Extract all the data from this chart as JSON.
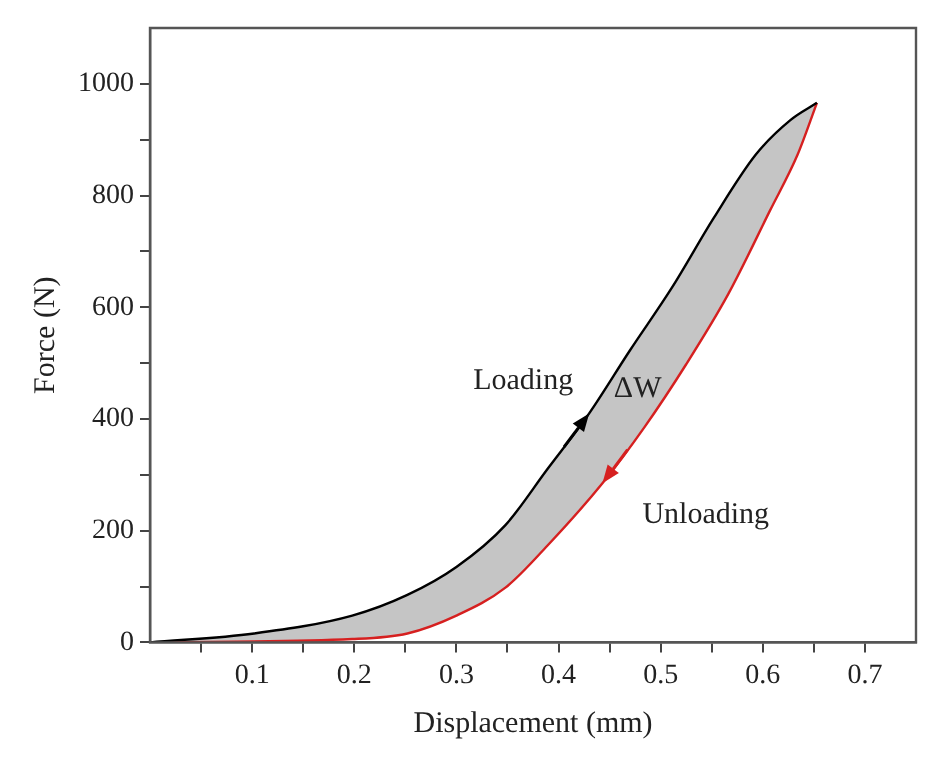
{
  "chart_data": {
    "type": "line",
    "xlabel": "Displacement (mm)",
    "ylabel": "Force (N)",
    "xlim": [
      0,
      0.75
    ],
    "ylim": [
      0,
      1100
    ],
    "xticks": [
      {
        "value": 0.05,
        "label": null
      },
      0.1,
      {
        "value": 0.15,
        "label": null
      },
      0.2,
      {
        "value": 0.25,
        "label": null
      },
      0.3,
      {
        "value": 0.35,
        "label": null
      },
      0.4,
      {
        "value": 0.45,
        "label": null
      },
      0.5,
      {
        "value": 0.55,
        "label": null
      },
      0.6,
      {
        "value": 0.65,
        "label": null
      },
      0.7
    ],
    "yticks": [
      0,
      {
        "value": 100,
        "label": null
      },
      200,
      {
        "value": 300,
        "label": null
      },
      400,
      {
        "value": 500,
        "label": null
      },
      600,
      {
        "value": 700,
        "label": null
      },
      800,
      {
        "value": 900,
        "label": null
      },
      1000
    ],
    "grid": false,
    "legend": false,
    "marker": "none",
    "line_style": "solid",
    "series": [
      {
        "color": "#000000",
        "x": [
          0,
          0.102,
          0.198,
          0.252,
          0.3,
          0.348,
          0.389,
          0.43,
          0.47,
          0.511,
          0.552,
          0.593,
          0.627,
          0.653
        ],
        "values": [
          0,
          16,
          48,
          85,
          135,
          210,
          310,
          410,
          523,
          635,
          760,
          873,
          935,
          966
        ]
      },
      {
        "color": "#d62020",
        "x": [
          0,
          0.198,
          0.252,
          0.3,
          0.348,
          0.389,
          0.443,
          0.484,
          0.525,
          0.566,
          0.607,
          0.634,
          0.653
        ],
        "values": [
          0,
          6,
          16,
          48,
          98,
          173,
          285,
          385,
          498,
          623,
          773,
          873,
          966
        ]
      }
    ],
    "annotations": [
      "Loading",
      "ΔW",
      "Unloading"
    ]
  }
}
